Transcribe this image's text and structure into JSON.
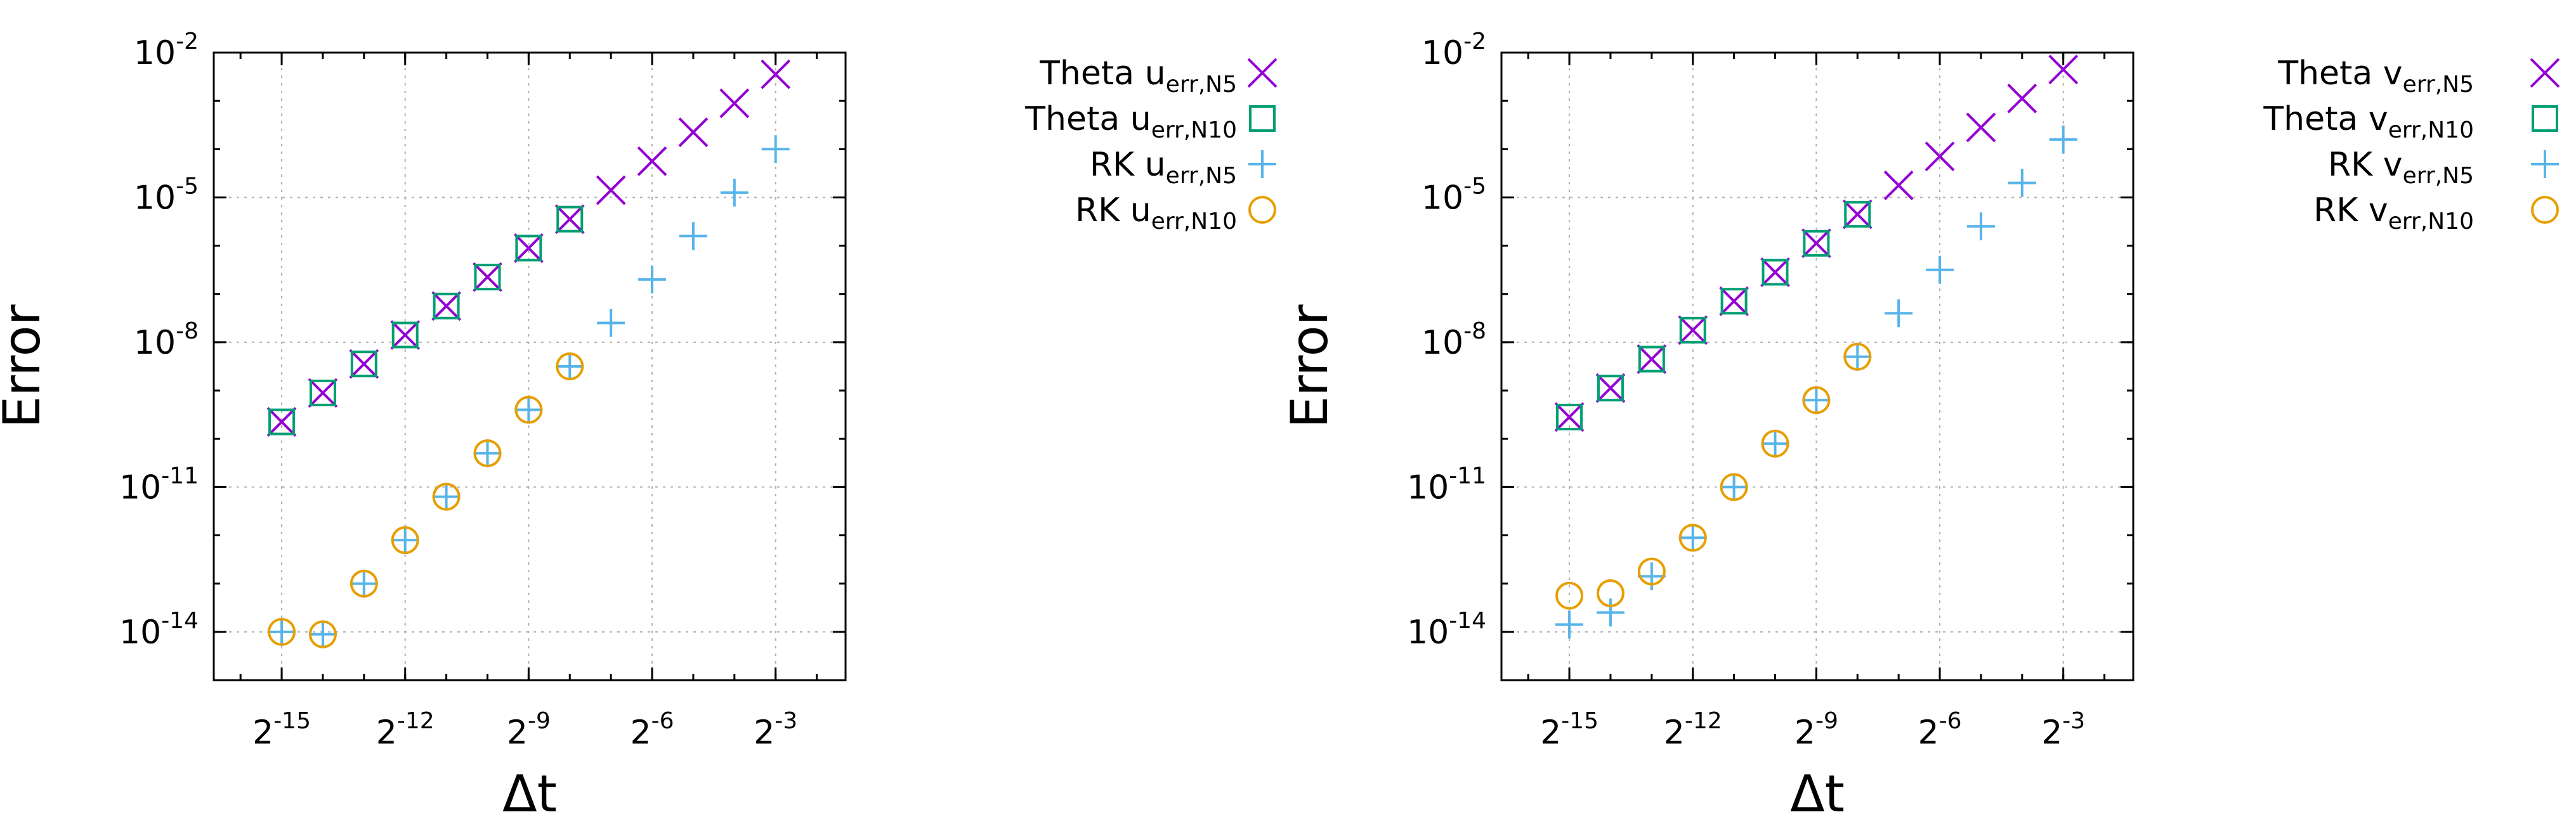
{
  "figure": {
    "layout": "two side-by-side log-log convergence plots"
  },
  "chart_data": [
    {
      "type": "scatter",
      "panel": "left",
      "xscale": "log2",
      "yscale": "log10",
      "xlabel": "Δt",
      "ylabel": "Error",
      "xlim_exp2": [
        -16.65,
        -1.3
      ],
      "ylim_exp10": [
        -15.0,
        -2.0
      ],
      "xticks": [
        {
          "base": "2",
          "exp": "-15",
          "value": -15
        },
        {
          "base": "2",
          "exp": "-12",
          "value": -12
        },
        {
          "base": "2",
          "exp": "-9",
          "value": -9
        },
        {
          "base": "2",
          "exp": "-6",
          "value": -6
        },
        {
          "base": "2",
          "exp": "-3",
          "value": -3
        }
      ],
      "yticks": [
        {
          "base": "10",
          "exp": "-2",
          "value": -2
        },
        {
          "base": "10",
          "exp": "-5",
          "value": -5
        },
        {
          "base": "10",
          "exp": "-8",
          "value": -8
        },
        {
          "base": "10",
          "exp": "-11",
          "value": -11
        },
        {
          "base": "10",
          "exp": "-14",
          "value": -14
        }
      ],
      "grid": true,
      "legend_position": "outside-right",
      "series": [
        {
          "name": "Theta u_err,N5",
          "label_main": "Theta u",
          "label_sub": "err,N5",
          "marker": "x",
          "color": "#9400D3",
          "x_exp2": [
            -15,
            -14,
            -13,
            -12,
            -11,
            -10,
            -9,
            -8,
            -7,
            -6,
            -5,
            -4,
            -3
          ],
          "log10_error": [
            -9.65,
            -9.05,
            -8.45,
            -7.85,
            -7.25,
            -6.65,
            -6.05,
            -5.45,
            -4.85,
            -4.25,
            -3.65,
            -3.05,
            -2.45
          ]
        },
        {
          "name": "Theta u_err,N10",
          "label_main": "Theta u",
          "label_sub": "err,N10",
          "marker": "square",
          "color": "#009E73",
          "x_exp2": [
            -15,
            -14,
            -13,
            -12,
            -11,
            -10,
            -9,
            -8
          ],
          "log10_error": [
            -9.65,
            -9.05,
            -8.45,
            -7.85,
            -7.25,
            -6.65,
            -6.05,
            -5.45
          ]
        },
        {
          "name": "RK u_err,N5",
          "label_main": "RK u",
          "label_sub": "err,N5",
          "marker": "plus",
          "color": "#56B4E9",
          "x_exp2": [
            -15,
            -14,
            -13,
            -12,
            -11,
            -10,
            -9,
            -8,
            -7,
            -6,
            -5,
            -4,
            -3
          ],
          "log10_error": [
            -14.0,
            -14.05,
            -13.0,
            -12.1,
            -11.2,
            -10.3,
            -9.4,
            -8.5,
            -7.6,
            -6.7,
            -5.8,
            -4.9,
            -4.0
          ]
        },
        {
          "name": "RK u_err,N10",
          "label_main": "RK u",
          "label_sub": "err,N10",
          "marker": "circle",
          "color": "#E69F00",
          "x_exp2": [
            -15,
            -14,
            -13,
            -12,
            -11,
            -10,
            -9,
            -8
          ],
          "log10_error": [
            -14.0,
            -14.05,
            -13.0,
            -12.1,
            -11.2,
            -10.3,
            -9.4,
            -8.5
          ]
        }
      ]
    },
    {
      "type": "scatter",
      "panel": "right",
      "xscale": "log2",
      "yscale": "log10",
      "xlabel": "Δt",
      "ylabel": "Error",
      "xlim_exp2": [
        -16.65,
        -1.3
      ],
      "ylim_exp10": [
        -15.0,
        -2.0
      ],
      "xticks": [
        {
          "base": "2",
          "exp": "-15",
          "value": -15
        },
        {
          "base": "2",
          "exp": "-12",
          "value": -12
        },
        {
          "base": "2",
          "exp": "-9",
          "value": -9
        },
        {
          "base": "2",
          "exp": "-6",
          "value": -6
        },
        {
          "base": "2",
          "exp": "-3",
          "value": -3
        }
      ],
      "yticks": [
        {
          "base": "10",
          "exp": "-2",
          "value": -2
        },
        {
          "base": "10",
          "exp": "-5",
          "value": -5
        },
        {
          "base": "10",
          "exp": "-8",
          "value": -8
        },
        {
          "base": "10",
          "exp": "-11",
          "value": -11
        },
        {
          "base": "10",
          "exp": "-14",
          "value": -14
        }
      ],
      "grid": true,
      "legend_position": "outside-right",
      "series": [
        {
          "name": "Theta v_err,N5",
          "label_main": "Theta v",
          "label_sub": "err,N5",
          "marker": "x",
          "color": "#9400D3",
          "x_exp2": [
            -15,
            -14,
            -13,
            -12,
            -11,
            -10,
            -9,
            -8,
            -7,
            -6,
            -5,
            -4,
            -3
          ],
          "log10_error": [
            -9.55,
            -8.95,
            -8.35,
            -7.75,
            -7.15,
            -6.55,
            -5.95,
            -5.35,
            -4.75,
            -4.15,
            -3.55,
            -2.95,
            -2.35
          ]
        },
        {
          "name": "Theta v_err,N10",
          "label_main": "Theta v",
          "label_sub": "err,N10",
          "marker": "square",
          "color": "#009E73",
          "x_exp2": [
            -15,
            -14,
            -13,
            -12,
            -11,
            -10,
            -9,
            -8
          ],
          "log10_error": [
            -9.55,
            -8.95,
            -8.35,
            -7.75,
            -7.15,
            -6.55,
            -5.95,
            -5.35
          ]
        },
        {
          "name": "RK v_err,N5",
          "label_main": "RK v",
          "label_sub": "err,N5",
          "marker": "plus",
          "color": "#56B4E9",
          "x_exp2": [
            -15,
            -14,
            -13,
            -12,
            -11,
            -10,
            -9,
            -8,
            -7,
            -6,
            -5,
            -4,
            -3
          ],
          "log10_error": [
            -13.85,
            -13.6,
            -12.85,
            -12.05,
            -11.0,
            -10.1,
            -9.2,
            -8.3,
            -7.4,
            -6.5,
            -5.6,
            -4.7,
            -3.8
          ]
        },
        {
          "name": "RK v_err,N10",
          "label_main": "RK v",
          "label_sub": "err,N10",
          "marker": "circle",
          "color": "#E69F00",
          "x_exp2": [
            -15,
            -14,
            -13,
            -12,
            -11,
            -10,
            -9,
            -8
          ],
          "log10_error": [
            -13.25,
            -13.2,
            -12.75,
            -12.05,
            -11.0,
            -10.1,
            -9.2,
            -8.3
          ]
        }
      ]
    }
  ]
}
